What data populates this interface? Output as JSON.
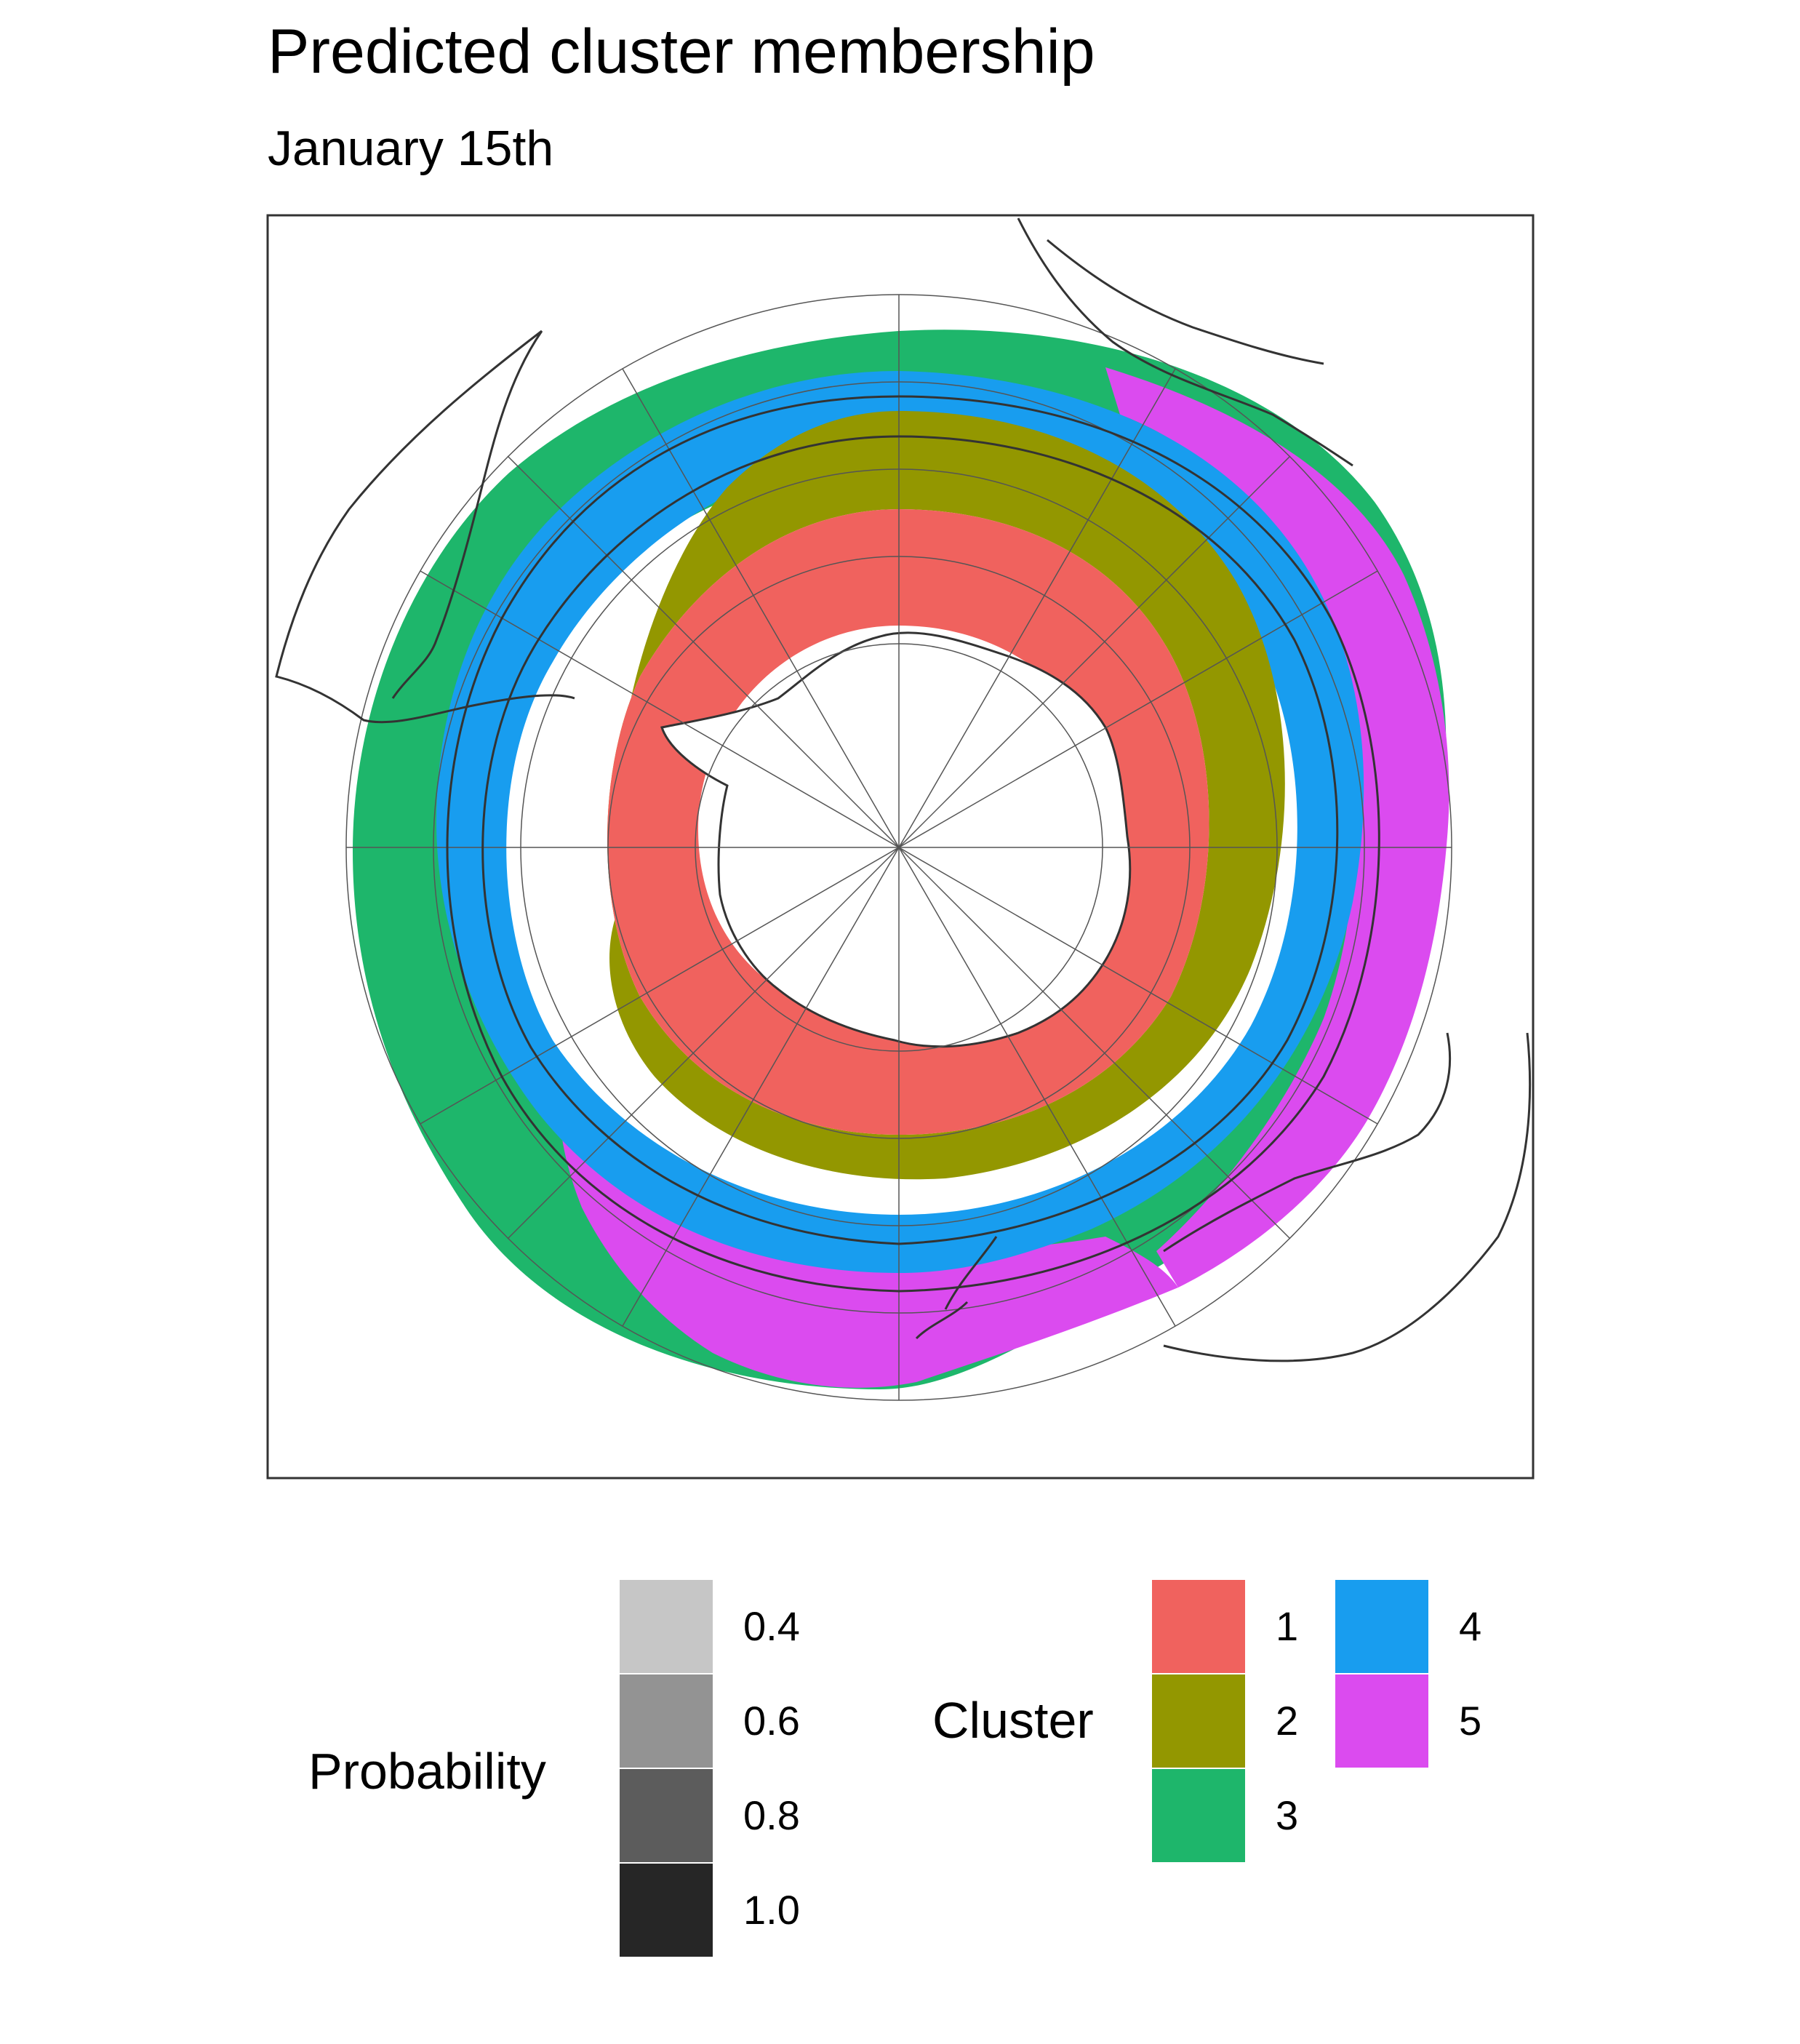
{
  "title": "Predicted cluster membership",
  "subtitle": "January 15th",
  "colors": {
    "cluster_1": "#F0625E",
    "cluster_2": "#939700",
    "cluster_3": "#1EB66B",
    "cluster_4": "#189DEF",
    "cluster_5": "#DB4BEF",
    "land_outline": "#333333",
    "graticule": "#555555",
    "panel_border": "#333333"
  },
  "legend": {
    "probability": {
      "title": "Probability",
      "items": [
        {
          "label": "0.4",
          "color": "#C6C6C6"
        },
        {
          "label": "0.6",
          "color": "#939393"
        },
        {
          "label": "0.8",
          "color": "#5C5C5C"
        },
        {
          "label": "1.0",
          "color": "#262626"
        }
      ]
    },
    "cluster": {
      "title": "Cluster",
      "items": [
        {
          "label": "1",
          "color": "#F0625E"
        },
        {
          "label": "2",
          "color": "#939700"
        },
        {
          "label": "3",
          "color": "#1EB66B"
        },
        {
          "label": "4",
          "color": "#189DEF"
        },
        {
          "label": "5",
          "color": "#DB4BEF"
        }
      ]
    }
  }
}
